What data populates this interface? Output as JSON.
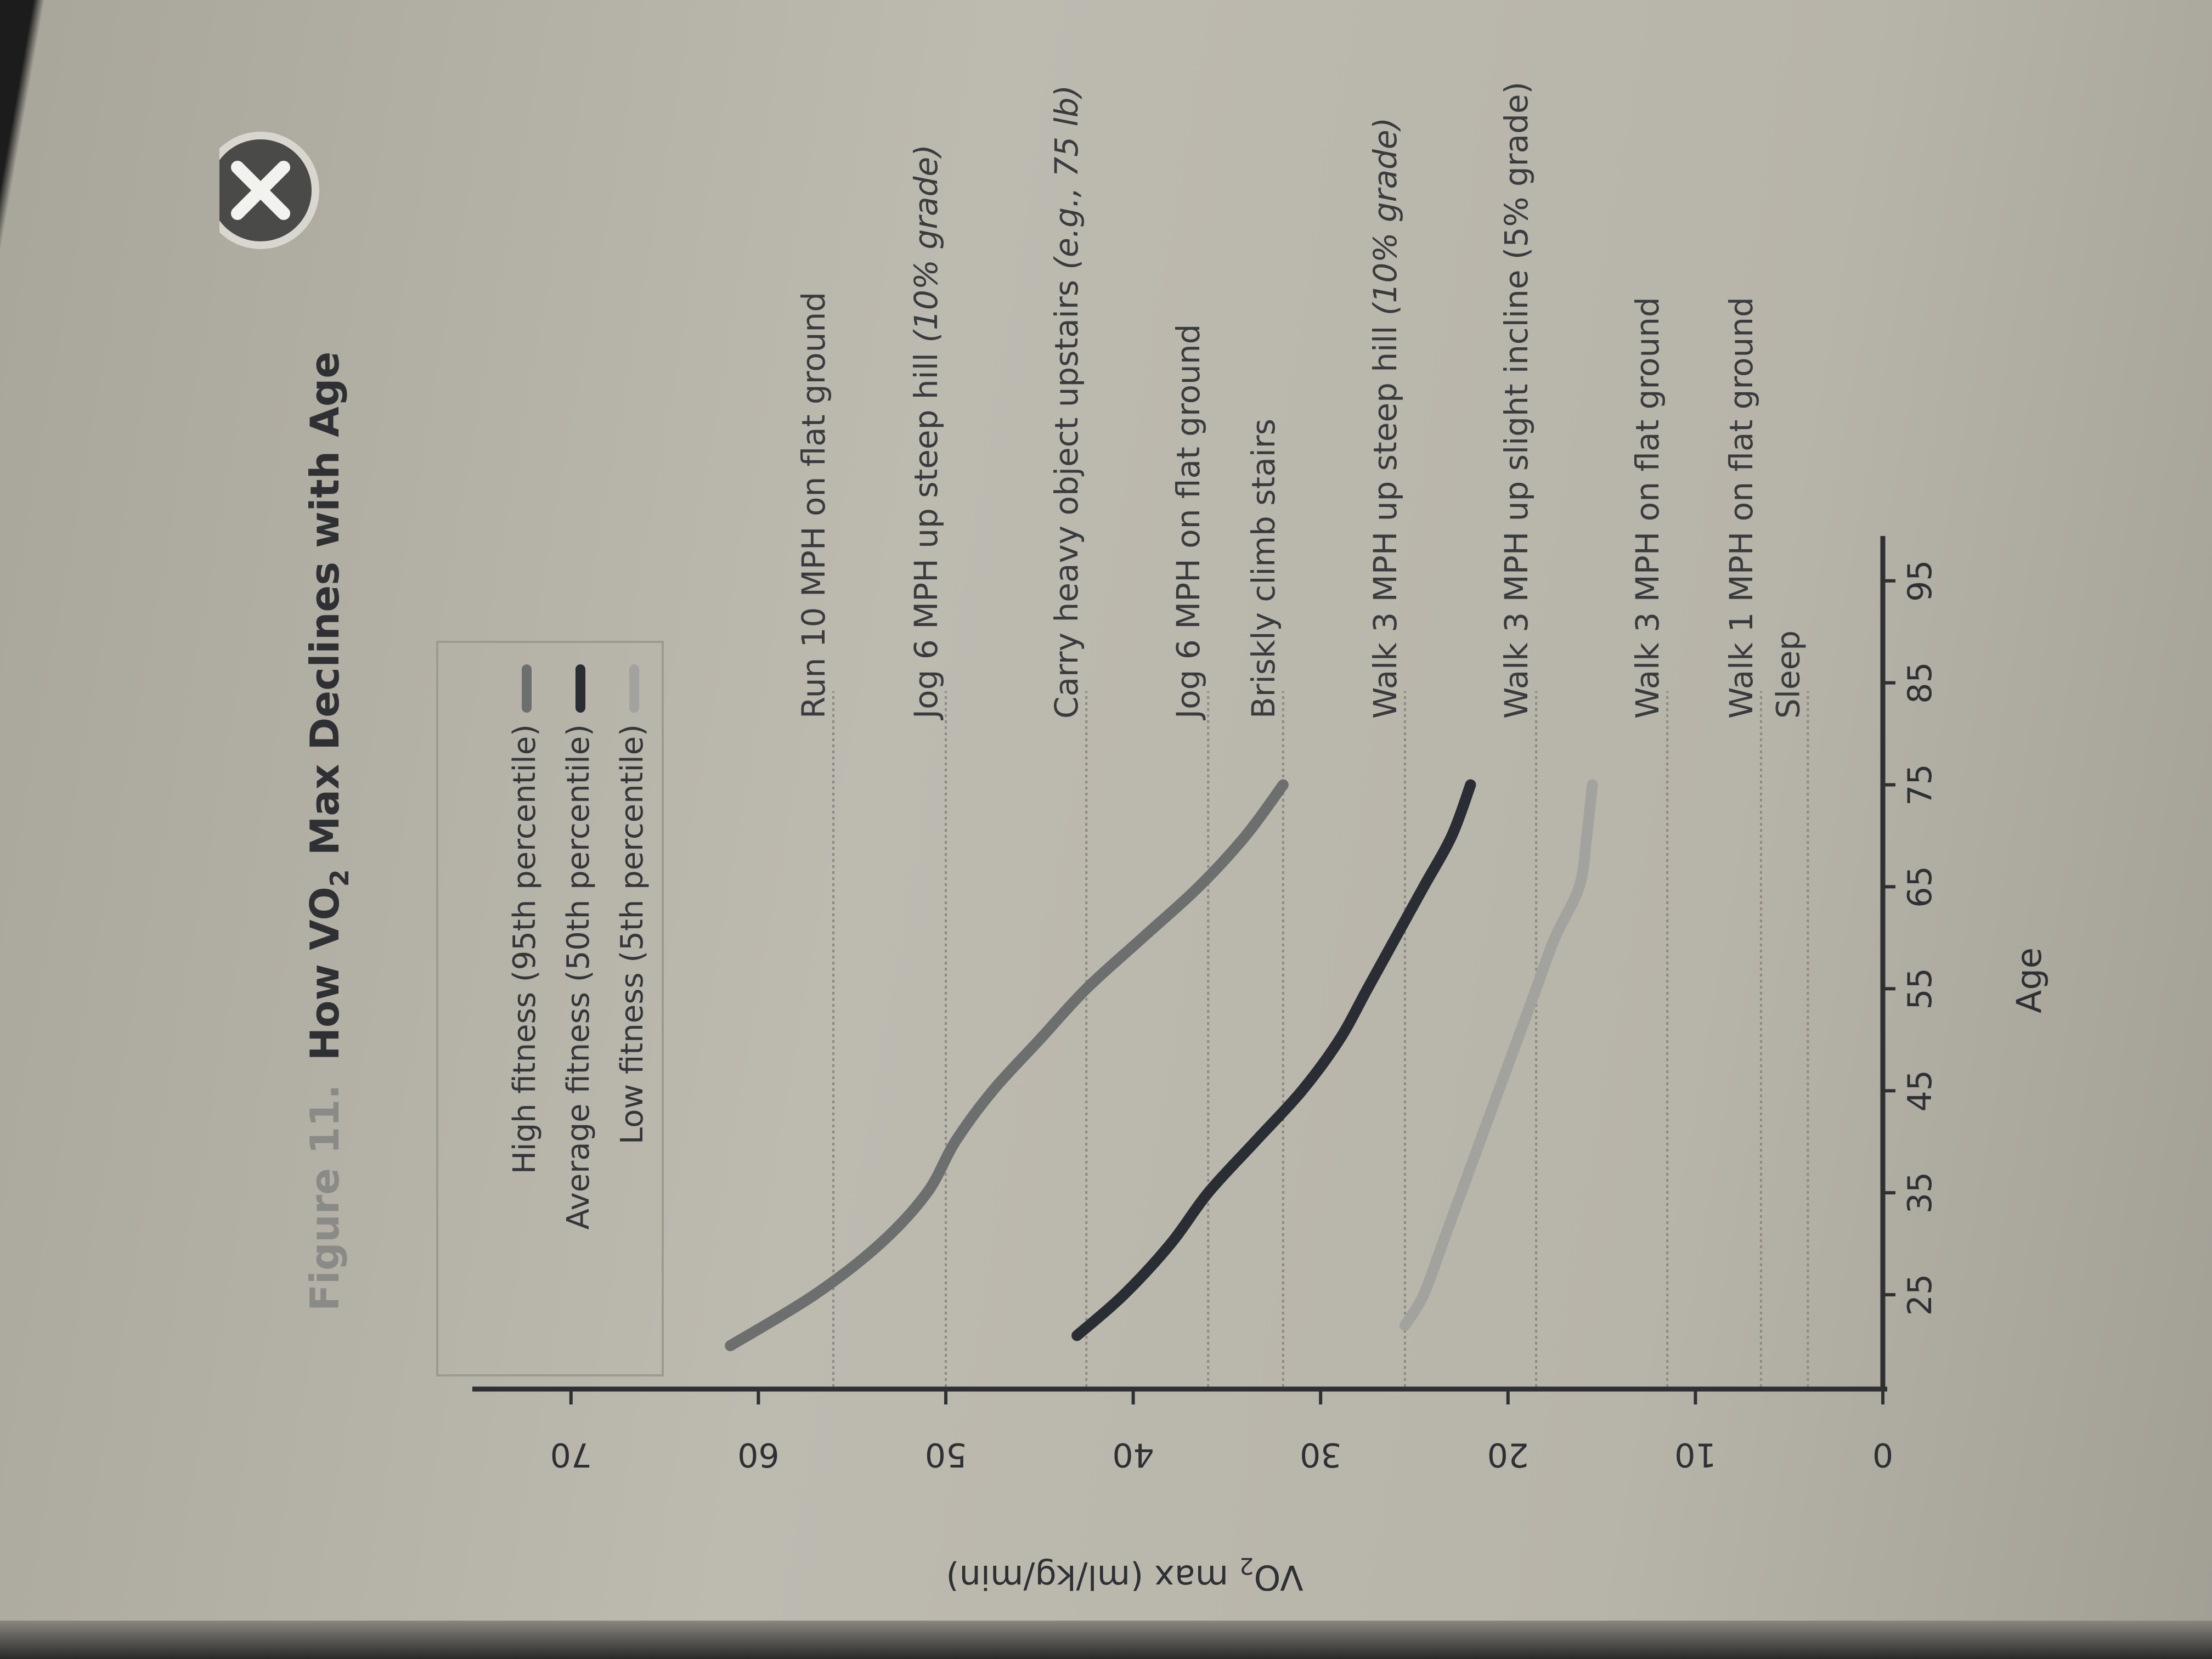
{
  "close_button": {
    "icon": "close-icon"
  },
  "figure": {
    "title_prefix": "Figure 11.",
    "title_main": "How VO",
    "title_sub": "2",
    "title_rest": " Max Declines with Age"
  },
  "chart_data": {
    "type": "line",
    "title": "How VO2 Max Declines with Age",
    "xlabel": "Age",
    "ylabel_main": "VO",
    "ylabel_sub": "2",
    "ylabel_rest": " max (ml/kg/min)",
    "xlim": [
      15,
      100
    ],
    "ylim": [
      0,
      75
    ],
    "x_ticks": [
      "25",
      "35",
      "45",
      "55",
      "65",
      "75",
      "85",
      "95"
    ],
    "y_ticks": [
      "0",
      "10",
      "20",
      "30",
      "40",
      "50",
      "60",
      "70"
    ],
    "legend_position": "top-left",
    "series": [
      {
        "name": "High fitness (95th percentile)",
        "color": "#6d6e6e",
        "x": [
          20,
          25,
          30,
          35,
          40,
          45,
          50,
          55,
          60,
          65,
          70,
          75
        ],
        "y": [
          61.5,
          57,
          53.5,
          51,
          49.5,
          47.5,
          45,
          42.5,
          39.5,
          36.5,
          34,
          32
        ]
      },
      {
        "name": "Average fitness (50th percentile)",
        "color": "#2a2d33",
        "x": [
          21,
          25,
          30,
          35,
          40,
          45,
          50,
          55,
          60,
          65,
          70,
          75
        ],
        "y": [
          43,
          40.5,
          38,
          36,
          33.5,
          31,
          29,
          27.5,
          26,
          24.5,
          23,
          22
        ]
      },
      {
        "name": "Low fitness (5th percentile)",
        "color": "#a2a29e",
        "x": [
          22,
          25,
          30,
          35,
          40,
          45,
          50,
          55,
          60,
          65,
          70,
          75
        ],
        "y": [
          25.5,
          24.5,
          23.5,
          22.5,
          21.5,
          20.5,
          19.5,
          18.5,
          17.5,
          16.2,
          15.8,
          15.5
        ]
      }
    ],
    "reference_lines": [
      {
        "label": "Run 10 MPH on flat ground",
        "value": 56
      },
      {
        "label_main": "Jog 6 MPH up steep hill ",
        "label_note": "(10% grade)",
        "value": 50
      },
      {
        "label_main": "Carry heavy object upstairs ",
        "label_note": "(e.g., 75 lb)",
        "value": 42.5
      },
      {
        "label": "Jog 6 MPH on flat ground",
        "value": 36
      },
      {
        "label": "Briskly climb stairs",
        "value": 32
      },
      {
        "label_main": "Walk 3 MPH up steep hill ",
        "label_note": "(10% grade)",
        "value": 25.5
      },
      {
        "label": "Walk 3 MPH up slight incline (5% grade)",
        "value": 18.5
      },
      {
        "label": "Walk 3 MPH on flat ground",
        "value": 11.5
      },
      {
        "label": "Walk 1 MPH on flat ground",
        "value": 6.5
      },
      {
        "label": "Sleep",
        "value": 4
      }
    ]
  }
}
